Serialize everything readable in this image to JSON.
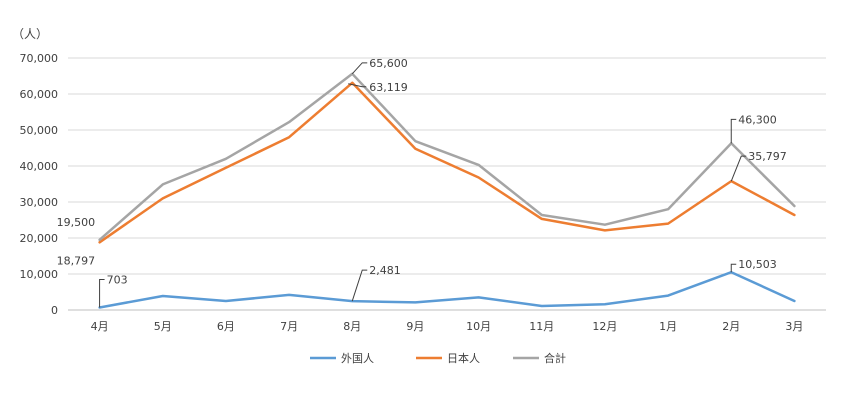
{
  "chart_data": {
    "type": "line",
    "unit_label": "（人）",
    "categories": [
      "4月",
      "5月",
      "6月",
      "7月",
      "8月",
      "9月",
      "10月",
      "11月",
      "12月",
      "1月",
      "2月",
      "3月"
    ],
    "ylim": [
      0,
      70000
    ],
    "yticks": [
      "0",
      "10,000",
      "20,000",
      "30,000",
      "40,000",
      "50,000",
      "60,000",
      "70,000"
    ],
    "grid": true,
    "legend_position": "bottom",
    "series": [
      {
        "name": "外国人",
        "color": "#5B9BD5",
        "values": [
          703,
          3900,
          2500,
          4200,
          2481,
          2100,
          3500,
          1100,
          1600,
          4000,
          10503,
          2500
        ]
      },
      {
        "name": "日本人",
        "color": "#ED7D31",
        "values": [
          18797,
          31000,
          39500,
          48000,
          63119,
          44800,
          36800,
          25300,
          22100,
          24000,
          35797,
          26400
        ]
      },
      {
        "name": "合計",
        "color": "#A5A5A5",
        "values": [
          19500,
          34900,
          42000,
          52200,
          65600,
          46900,
          40300,
          26400,
          23700,
          28000,
          46300,
          28900
        ]
      }
    ],
    "annotations": [
      {
        "text": "703",
        "series": 0,
        "index": 0
      },
      {
        "text": "2,481",
        "series": 0,
        "index": 4
      },
      {
        "text": "10,503",
        "series": 0,
        "index": 10
      },
      {
        "text": "18,797",
        "series": 1,
        "index": 0
      },
      {
        "text": "63,119",
        "series": 1,
        "index": 4
      },
      {
        "text": "35,797",
        "series": 1,
        "index": 10
      },
      {
        "text": "19,500",
        "series": 2,
        "index": 0
      },
      {
        "text": "65,600",
        "series": 2,
        "index": 4
      },
      {
        "text": "46,300",
        "series": 2,
        "index": 10
      }
    ]
  }
}
